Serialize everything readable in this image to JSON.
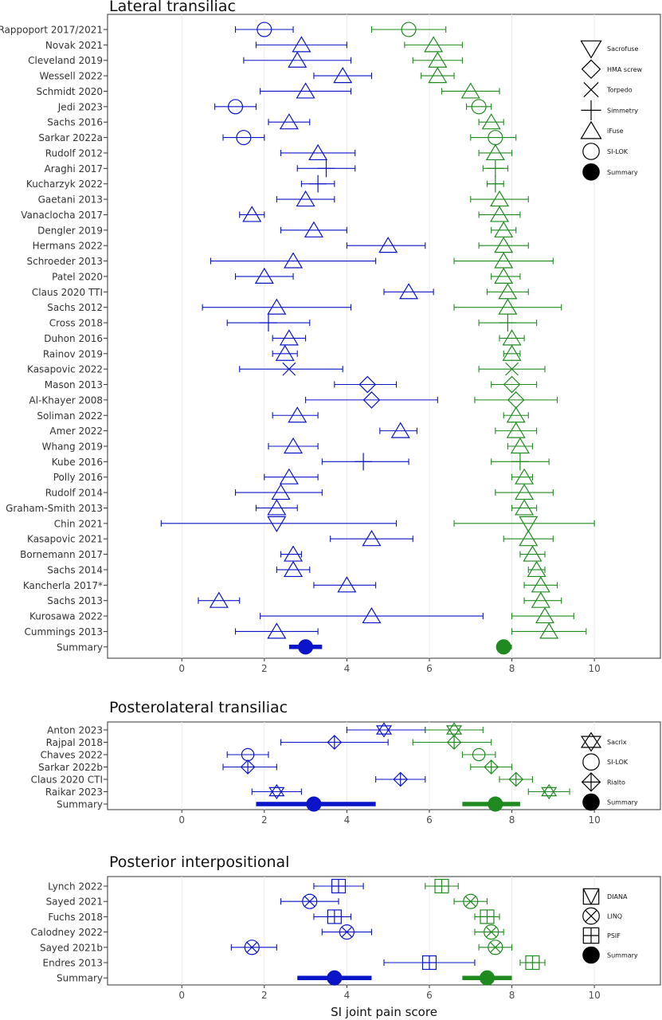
{
  "colors": {
    "pre": "#0a14c8",
    "post": "#1f8a1f",
    "legend": "#000000",
    "grid": "#ebebeb",
    "frame": "#333333"
  },
  "chart_data": [
    {
      "type": "forest",
      "title": "Lateral transiliac",
      "xlim": [
        -1.8,
        11.6
      ],
      "x_ticks": [
        0,
        2,
        4,
        6,
        8,
        10
      ],
      "legend": [
        "Sacrofuse",
        "HMA screw",
        "Torpedo",
        "Simmetry",
        "iFuse",
        "SI-LOK",
        "Summary"
      ],
      "legend_symbols": [
        "tri-down",
        "diamond",
        "x",
        "plus",
        "tri-up",
        "circle",
        "filled-circle"
      ],
      "series": [
        {
          "name": "Rappoport 2017/2021",
          "symbol": "circle",
          "pre": [
            2.0,
            1.3,
            2.7
          ],
          "post": [
            5.5,
            4.6,
            6.4
          ]
        },
        {
          "name": "Novak 2021",
          "symbol": "tri-up",
          "pre": [
            2.9,
            1.8,
            4.0
          ],
          "post": [
            6.1,
            5.4,
            6.8
          ]
        },
        {
          "name": "Cleveland 2019",
          "symbol": "tri-up",
          "pre": [
            2.8,
            1.5,
            4.1
          ],
          "post": [
            6.2,
            5.6,
            6.8
          ]
        },
        {
          "name": "Wessell 2022",
          "symbol": "tri-up",
          "pre": [
            3.9,
            3.2,
            4.6
          ],
          "post": [
            6.2,
            5.8,
            6.6
          ]
        },
        {
          "name": "Schmidt 2020",
          "symbol": "tri-up",
          "pre": [
            3.0,
            1.9,
            4.1
          ],
          "post": [
            7.0,
            6.3,
            7.7
          ]
        },
        {
          "name": "Jedi 2023",
          "symbol": "circle",
          "pre": [
            1.3,
            0.8,
            1.8
          ],
          "post": [
            7.2,
            6.9,
            7.5
          ]
        },
        {
          "name": "Sachs 2016",
          "symbol": "tri-up",
          "pre": [
            2.6,
            2.1,
            3.1
          ],
          "post": [
            7.5,
            7.2,
            7.8
          ]
        },
        {
          "name": "Sarkar 2022a",
          "symbol": "circle",
          "pre": [
            1.5,
            1.0,
            2.0
          ],
          "post": [
            7.6,
            7.0,
            8.1
          ]
        },
        {
          "name": "Rudolf 2012",
          "symbol": "tri-up",
          "pre": [
            3.3,
            2.4,
            4.2
          ],
          "post": [
            7.6,
            7.2,
            8.0
          ]
        },
        {
          "name": "Araghi 2017",
          "symbol": "plus",
          "pre": [
            3.5,
            2.8,
            4.2
          ],
          "post": [
            7.6,
            7.3,
            7.9
          ]
        },
        {
          "name": "Kucharzyk 2022",
          "symbol": "plus",
          "pre": [
            3.3,
            2.9,
            3.7
          ],
          "post": [
            7.6,
            7.4,
            7.8
          ]
        },
        {
          "name": "Gaetani 2013",
          "symbol": "tri-up",
          "pre": [
            3.0,
            2.3,
            3.7
          ],
          "post": [
            7.7,
            7.0,
            8.4
          ]
        },
        {
          "name": "Vanaclocha 2017",
          "symbol": "tri-up",
          "pre": [
            1.7,
            1.4,
            2.0
          ],
          "post": [
            7.7,
            7.2,
            8.2
          ]
        },
        {
          "name": "Dengler 2019",
          "symbol": "tri-up",
          "pre": [
            3.2,
            2.4,
            4.0
          ],
          "post": [
            7.8,
            7.5,
            8.1
          ]
        },
        {
          "name": "Hermans 2022",
          "symbol": "tri-up",
          "pre": [
            5.0,
            4.0,
            5.9
          ],
          "post": [
            7.8,
            7.2,
            8.4
          ]
        },
        {
          "name": "Schroeder 2013",
          "symbol": "tri-up",
          "pre": [
            2.7,
            0.7,
            4.7
          ],
          "post": [
            7.8,
            6.6,
            9.0
          ]
        },
        {
          "name": "Patel 2020",
          "symbol": "tri-up",
          "pre": [
            2.0,
            1.3,
            2.7
          ],
          "post": [
            7.8,
            7.5,
            8.2
          ]
        },
        {
          "name": "Claus 2020 TTI",
          "symbol": "tri-up",
          "pre": [
            5.5,
            4.9,
            6.1
          ],
          "post": [
            7.9,
            7.4,
            8.4
          ]
        },
        {
          "name": "Sachs 2012",
          "symbol": "tri-up",
          "pre": [
            2.3,
            0.5,
            4.1
          ],
          "post": [
            7.9,
            6.6,
            9.2
          ]
        },
        {
          "name": "Cross 2018",
          "symbol": "plus",
          "pre": [
            2.1,
            1.1,
            3.1
          ],
          "post": [
            7.9,
            7.2,
            8.6
          ]
        },
        {
          "name": "Duhon 2016",
          "symbol": "tri-up",
          "pre": [
            2.6,
            2.2,
            3.0
          ],
          "post": [
            8.0,
            7.7,
            8.3
          ]
        },
        {
          "name": "Rainov 2019",
          "symbol": "tri-up",
          "pre": [
            2.5,
            2.2,
            2.8
          ],
          "post": [
            8.0,
            7.8,
            8.2
          ]
        },
        {
          "name": "Kasapovic 2022",
          "symbol": "x",
          "pre": [
            2.6,
            1.4,
            3.9
          ],
          "post": [
            8.0,
            7.2,
            8.8
          ]
        },
        {
          "name": "Mason 2013",
          "symbol": "diamond",
          "pre": [
            4.5,
            3.7,
            5.2
          ],
          "post": [
            8.0,
            7.5,
            8.6
          ]
        },
        {
          "name": "Al-Khayer 2008",
          "symbol": "diamond",
          "pre": [
            4.6,
            3.0,
            6.2
          ],
          "post": [
            8.1,
            7.1,
            9.1
          ]
        },
        {
          "name": "Soliman 2022",
          "symbol": "tri-up",
          "pre": [
            2.8,
            2.2,
            3.3
          ],
          "post": [
            8.1,
            7.8,
            8.4
          ]
        },
        {
          "name": "Amer 2022",
          "symbol": "tri-up",
          "pre": [
            5.3,
            4.8,
            5.7
          ],
          "post": [
            8.1,
            7.6,
            8.6
          ]
        },
        {
          "name": "Whang 2019",
          "symbol": "tri-up",
          "pre": [
            2.7,
            2.1,
            3.3
          ],
          "post": [
            8.2,
            7.9,
            8.5
          ]
        },
        {
          "name": "Kube 2016",
          "symbol": "plus",
          "pre": [
            4.4,
            3.4,
            5.5
          ],
          "post": [
            8.2,
            7.5,
            8.9
          ]
        },
        {
          "name": "Polly 2016",
          "symbol": "tri-up",
          "pre": [
            2.6,
            2.0,
            3.3
          ],
          "post": [
            8.3,
            8.0,
            8.5
          ]
        },
        {
          "name": "Rudolf 2014",
          "symbol": "tri-up",
          "pre": [
            2.4,
            1.3,
            3.4
          ],
          "post": [
            8.3,
            7.6,
            9.0
          ]
        },
        {
          "name": "Graham-Smith 2013",
          "symbol": "tri-up",
          "pre": [
            2.3,
            1.8,
            2.8
          ],
          "post": [
            8.3,
            8.0,
            8.6
          ]
        },
        {
          "name": "Chin 2021",
          "symbol": "tri-down",
          "pre": [
            2.3,
            -0.5,
            5.2
          ],
          "post": [
            8.4,
            6.6,
            10.0
          ]
        },
        {
          "name": "Kasapovic 2021",
          "symbol": "tri-up",
          "pre": [
            4.6,
            3.6,
            5.6
          ],
          "post": [
            8.4,
            7.8,
            9.0
          ]
        },
        {
          "name": "Bornemann 2017",
          "symbol": "tri-up",
          "pre": [
            2.7,
            2.4,
            2.9
          ],
          "post": [
            8.5,
            8.2,
            8.8
          ]
        },
        {
          "name": "Sachs 2014",
          "symbol": "tri-up",
          "pre": [
            2.7,
            2.3,
            3.1
          ],
          "post": [
            8.6,
            8.4,
            8.8
          ]
        },
        {
          "name": "Kancherla 2017*",
          "symbol": "tri-up",
          "pre": [
            4.0,
            3.2,
            4.7
          ],
          "post": [
            8.7,
            8.3,
            9.1
          ]
        },
        {
          "name": "Sachs 2013",
          "symbol": "tri-up",
          "pre": [
            0.9,
            0.4,
            1.4
          ],
          "post": [
            8.7,
            8.3,
            9.2
          ]
        },
        {
          "name": "Kurosawa 2022",
          "symbol": "tri-up",
          "pre": [
            4.6,
            1.9,
            7.3
          ],
          "post": [
            8.8,
            8.0,
            9.5
          ]
        },
        {
          "name": "Cummings 2013",
          "symbol": "tri-up",
          "pre": [
            2.3,
            1.3,
            3.3
          ],
          "post": [
            8.9,
            8.0,
            9.8
          ]
        },
        {
          "name": "Summary",
          "symbol": "filled-circle",
          "pre": [
            3.0,
            2.6,
            3.4
          ],
          "post": [
            7.8,
            7.7,
            8.0
          ]
        }
      ]
    },
    {
      "type": "forest",
      "title": "Posterolateral transiliac",
      "xlim": [
        -1.8,
        11.6
      ],
      "x_ticks": [
        0,
        2,
        4,
        6,
        8,
        10
      ],
      "legend": [
        "Sacrix",
        "SI-LOK",
        "Rialto",
        "Summary"
      ],
      "legend_symbols": [
        "star",
        "circle",
        "diamond-plus",
        "filled-circle"
      ],
      "series": [
        {
          "name": "Anton 2023",
          "symbol": "star",
          "pre": [
            4.9,
            4.0,
            5.9
          ],
          "post": [
            6.6,
            5.9,
            7.3
          ]
        },
        {
          "name": "Rajpal 2018",
          "symbol": "diamond-plus",
          "pre": [
            3.7,
            2.4,
            5.0
          ],
          "post": [
            6.6,
            5.6,
            7.5
          ]
        },
        {
          "name": "Chaves 2022",
          "symbol": "circle",
          "pre": [
            1.6,
            1.1,
            2.1
          ],
          "post": [
            7.2,
            6.8,
            7.6
          ]
        },
        {
          "name": "Sarkar 2022b",
          "symbol": "diamond-plus",
          "pre": [
            1.6,
            1.0,
            2.3
          ],
          "post": [
            7.5,
            7.0,
            8.0
          ]
        },
        {
          "name": "Claus 2020 CTI",
          "symbol": "diamond-plus",
          "pre": [
            5.3,
            4.7,
            5.9
          ],
          "post": [
            8.1,
            7.7,
            8.5
          ]
        },
        {
          "name": "Raikar 2023",
          "symbol": "star",
          "pre": [
            2.3,
            1.7,
            2.9
          ],
          "post": [
            8.9,
            8.4,
            9.4
          ]
        },
        {
          "name": "Summary",
          "symbol": "filled-circle",
          "pre": [
            3.2,
            1.8,
            4.7
          ],
          "post": [
            7.6,
            6.8,
            8.2
          ]
        }
      ]
    },
    {
      "type": "forest",
      "title": "Posterior interpositional",
      "xlim": [
        -1.8,
        11.6
      ],
      "x_ticks": [
        0,
        2,
        4,
        6,
        8,
        10
      ],
      "xlabel": "SI joint pain score",
      "legend": [
        "DIANA",
        "LINQ",
        "PSIF",
        "Summary"
      ],
      "legend_symbols": [
        "tri-down-box",
        "circle-x",
        "square-plus",
        "filled-circle"
      ],
      "series": [
        {
          "name": "Lynch 2022",
          "symbol": "square-plus",
          "pre": [
            3.8,
            3.2,
            4.4
          ],
          "post": [
            6.3,
            5.9,
            6.7
          ]
        },
        {
          "name": "Sayed 2021",
          "symbol": "circle-x",
          "pre": [
            3.1,
            2.4,
            3.8
          ],
          "post": [
            7.0,
            6.6,
            7.4
          ]
        },
        {
          "name": "Fuchs 2018",
          "symbol": "square-plus",
          "pre": [
            3.7,
            3.2,
            4.1
          ],
          "post": [
            7.4,
            7.1,
            7.7
          ]
        },
        {
          "name": "Calodney 2022",
          "symbol": "circle-x",
          "pre": [
            4.0,
            3.4,
            4.6
          ],
          "post": [
            7.5,
            7.1,
            7.8
          ]
        },
        {
          "name": "Sayed 2021b",
          "symbol": "circle-x",
          "pre": [
            1.7,
            1.2,
            2.3
          ],
          "post": [
            7.6,
            7.2,
            8.0
          ]
        },
        {
          "name": "Endres 2013",
          "symbol": "square-plus",
          "pre": [
            6.0,
            4.9,
            7.1
          ],
          "post": [
            8.5,
            8.2,
            8.8
          ]
        },
        {
          "name": "Summary",
          "symbol": "filled-circle",
          "pre": [
            3.7,
            2.8,
            4.6
          ],
          "post": [
            7.4,
            6.8,
            8.0
          ]
        }
      ]
    }
  ]
}
